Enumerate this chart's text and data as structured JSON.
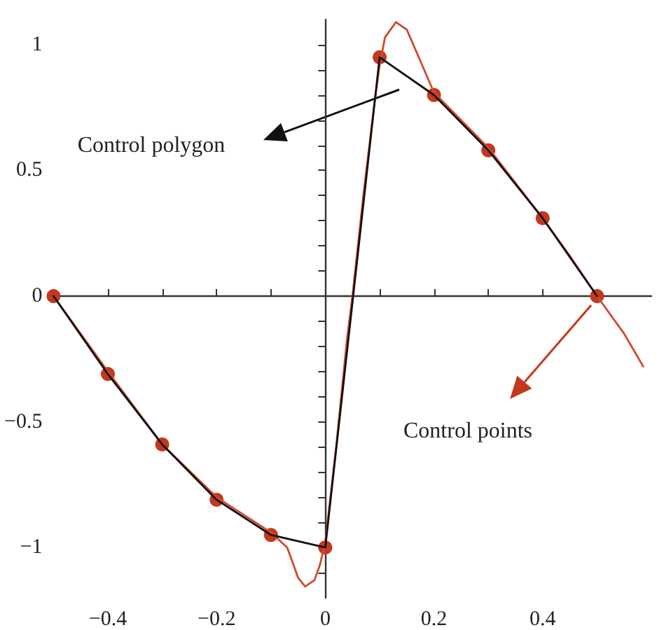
{
  "chart_data": {
    "type": "line",
    "xlim": [
      -0.5,
      0.6
    ],
    "ylim": [
      -1.2,
      1.1
    ],
    "xticks": [
      {
        "value": -0.4,
        "label": "−0.4"
      },
      {
        "value": -0.3,
        "label": null
      },
      {
        "value": -0.2,
        "label": "−0.2"
      },
      {
        "value": -0.1,
        "label": null
      },
      0,
      {
        "value": 0.1,
        "label": null
      },
      0.2,
      {
        "value": 0.3,
        "label": null
      },
      0.4,
      {
        "value": 0.5,
        "label": null
      }
    ],
    "yticks": [
      {
        "value": -1.1,
        "label": null
      },
      {
        "value": -1,
        "label": "−1"
      },
      {
        "value": -0.9,
        "label": null
      },
      {
        "value": -0.8,
        "label": null
      },
      {
        "value": -0.7,
        "label": null
      },
      {
        "value": -0.6,
        "label": null
      },
      {
        "value": -0.5,
        "label": "−0.5"
      },
      {
        "value": -0.4,
        "label": null
      },
      {
        "value": -0.3,
        "label": null
      },
      {
        "value": -0.2,
        "label": null
      },
      {
        "value": -0.1,
        "label": null
      },
      0,
      {
        "value": 0.1,
        "label": null
      },
      {
        "value": 0.2,
        "label": null
      },
      {
        "value": 0.3,
        "label": null
      },
      {
        "value": 0.4,
        "label": null
      },
      0.5,
      {
        "value": 0.6,
        "label": null
      },
      {
        "value": 0.7,
        "label": null
      },
      {
        "value": 0.8,
        "label": null
      },
      {
        "value": 0.9,
        "label": null
      },
      1
    ],
    "series": [
      {
        "color": "#d04a2c",
        "marker": "none",
        "x": [
          -0.5,
          -0.45,
          -0.4,
          -0.3,
          -0.2,
          -0.1,
          -0.07,
          -0.05,
          -0.037,
          -0.02,
          -0.01,
          0,
          0.02,
          0.04,
          0.05,
          0.07,
          0.09,
          0.1,
          0.11,
          0.13,
          0.15,
          0.17,
          0.19,
          0.2,
          0.25,
          0.3,
          0.35,
          0.4,
          0.45,
          0.5,
          0.55,
          0.585
        ],
        "values": [
          0,
          -0.15,
          -0.3,
          -0.59,
          -0.8,
          -0.94,
          -1.0,
          -1.12,
          -1.155,
          -1.13,
          -1.07,
          -0.98,
          -0.6,
          -0.17,
          0,
          0.4,
          0.76,
          0.92,
          1.03,
          1.09,
          1.06,
          0.96,
          0.86,
          0.81,
          0.7,
          0.59,
          0.45,
          0.31,
          0.16,
          0,
          -0.15,
          -0.28
        ]
      },
      {
        "color": "#111111",
        "marker": "none",
        "x": [
          -0.5,
          -0.4,
          -0.3,
          -0.2,
          -0.1,
          0,
          0.1,
          0.2,
          0.3,
          0.4,
          0.5
        ],
        "values": [
          0,
          -0.31,
          -0.59,
          -0.81,
          -0.95,
          -1,
          0.95,
          0.8,
          0.58,
          0.31,
          0
        ]
      },
      {
        "type": "scatter",
        "color": "#c4381c",
        "marker": "circle",
        "x": [
          -0.5,
          -0.4,
          -0.3,
          -0.2,
          -0.1,
          0,
          0.1,
          0.2,
          0.3,
          0.4,
          0.5
        ],
        "values": [
          0,
          -0.31,
          -0.59,
          -0.81,
          -0.95,
          -1,
          0.95,
          0.8,
          0.58,
          0.31,
          0
        ]
      }
    ],
    "annotations": [
      "Control polygon",
      "Control points"
    ]
  }
}
